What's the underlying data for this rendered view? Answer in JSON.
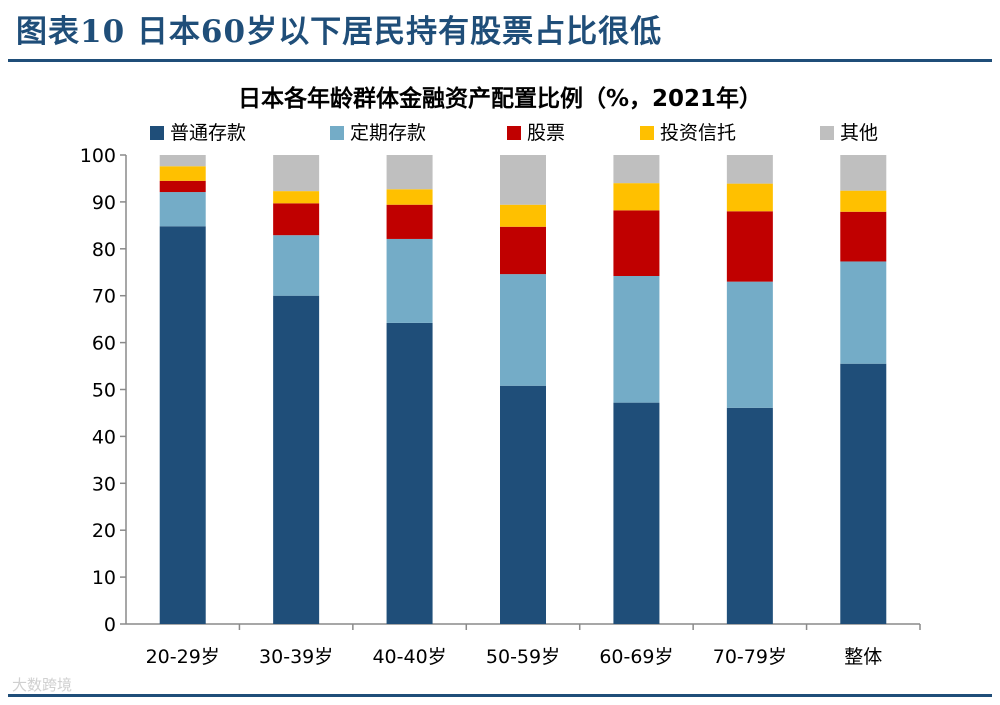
{
  "figure": {
    "title": "图表10 日本60岁以下居民持有股票占比很低",
    "watermark": "大数跨境"
  },
  "chart_data": {
    "type": "bar",
    "stacked": true,
    "title": "日本各年龄群体金融资产配置比例（%，2021年）",
    "categories": [
      "20-29岁",
      "30-39岁",
      "40-40岁",
      "50-59岁",
      "60-69岁",
      "70-79岁",
      "整体"
    ],
    "series": [
      {
        "name": "普通存款",
        "color": "#1f4e79",
        "values": [
          84.8,
          70.0,
          64.2,
          50.8,
          47.2,
          46.1,
          55.5
        ]
      },
      {
        "name": "定期存款",
        "color": "#74acc7",
        "values": [
          7.3,
          12.9,
          17.9,
          23.8,
          27.0,
          26.9,
          21.8
        ]
      },
      {
        "name": "股票",
        "color": "#c00000",
        "values": [
          2.4,
          6.8,
          7.3,
          10.1,
          14.0,
          15.0,
          10.6
        ]
      },
      {
        "name": "投资信托",
        "color": "#ffc000",
        "values": [
          3.1,
          2.6,
          3.3,
          4.7,
          5.8,
          5.9,
          4.5
        ]
      },
      {
        "name": "其他",
        "color": "#bfbfbf",
        "values": [
          2.4,
          7.7,
          7.3,
          10.6,
          6.0,
          6.1,
          7.6
        ]
      }
    ],
    "ylim": [
      0,
      100
    ],
    "yticks": [
      "0",
      "10",
      "20",
      "30",
      "40",
      "50",
      "60",
      "70",
      "80",
      "90",
      "100"
    ],
    "legend_position": "top",
    "grid": false
  }
}
